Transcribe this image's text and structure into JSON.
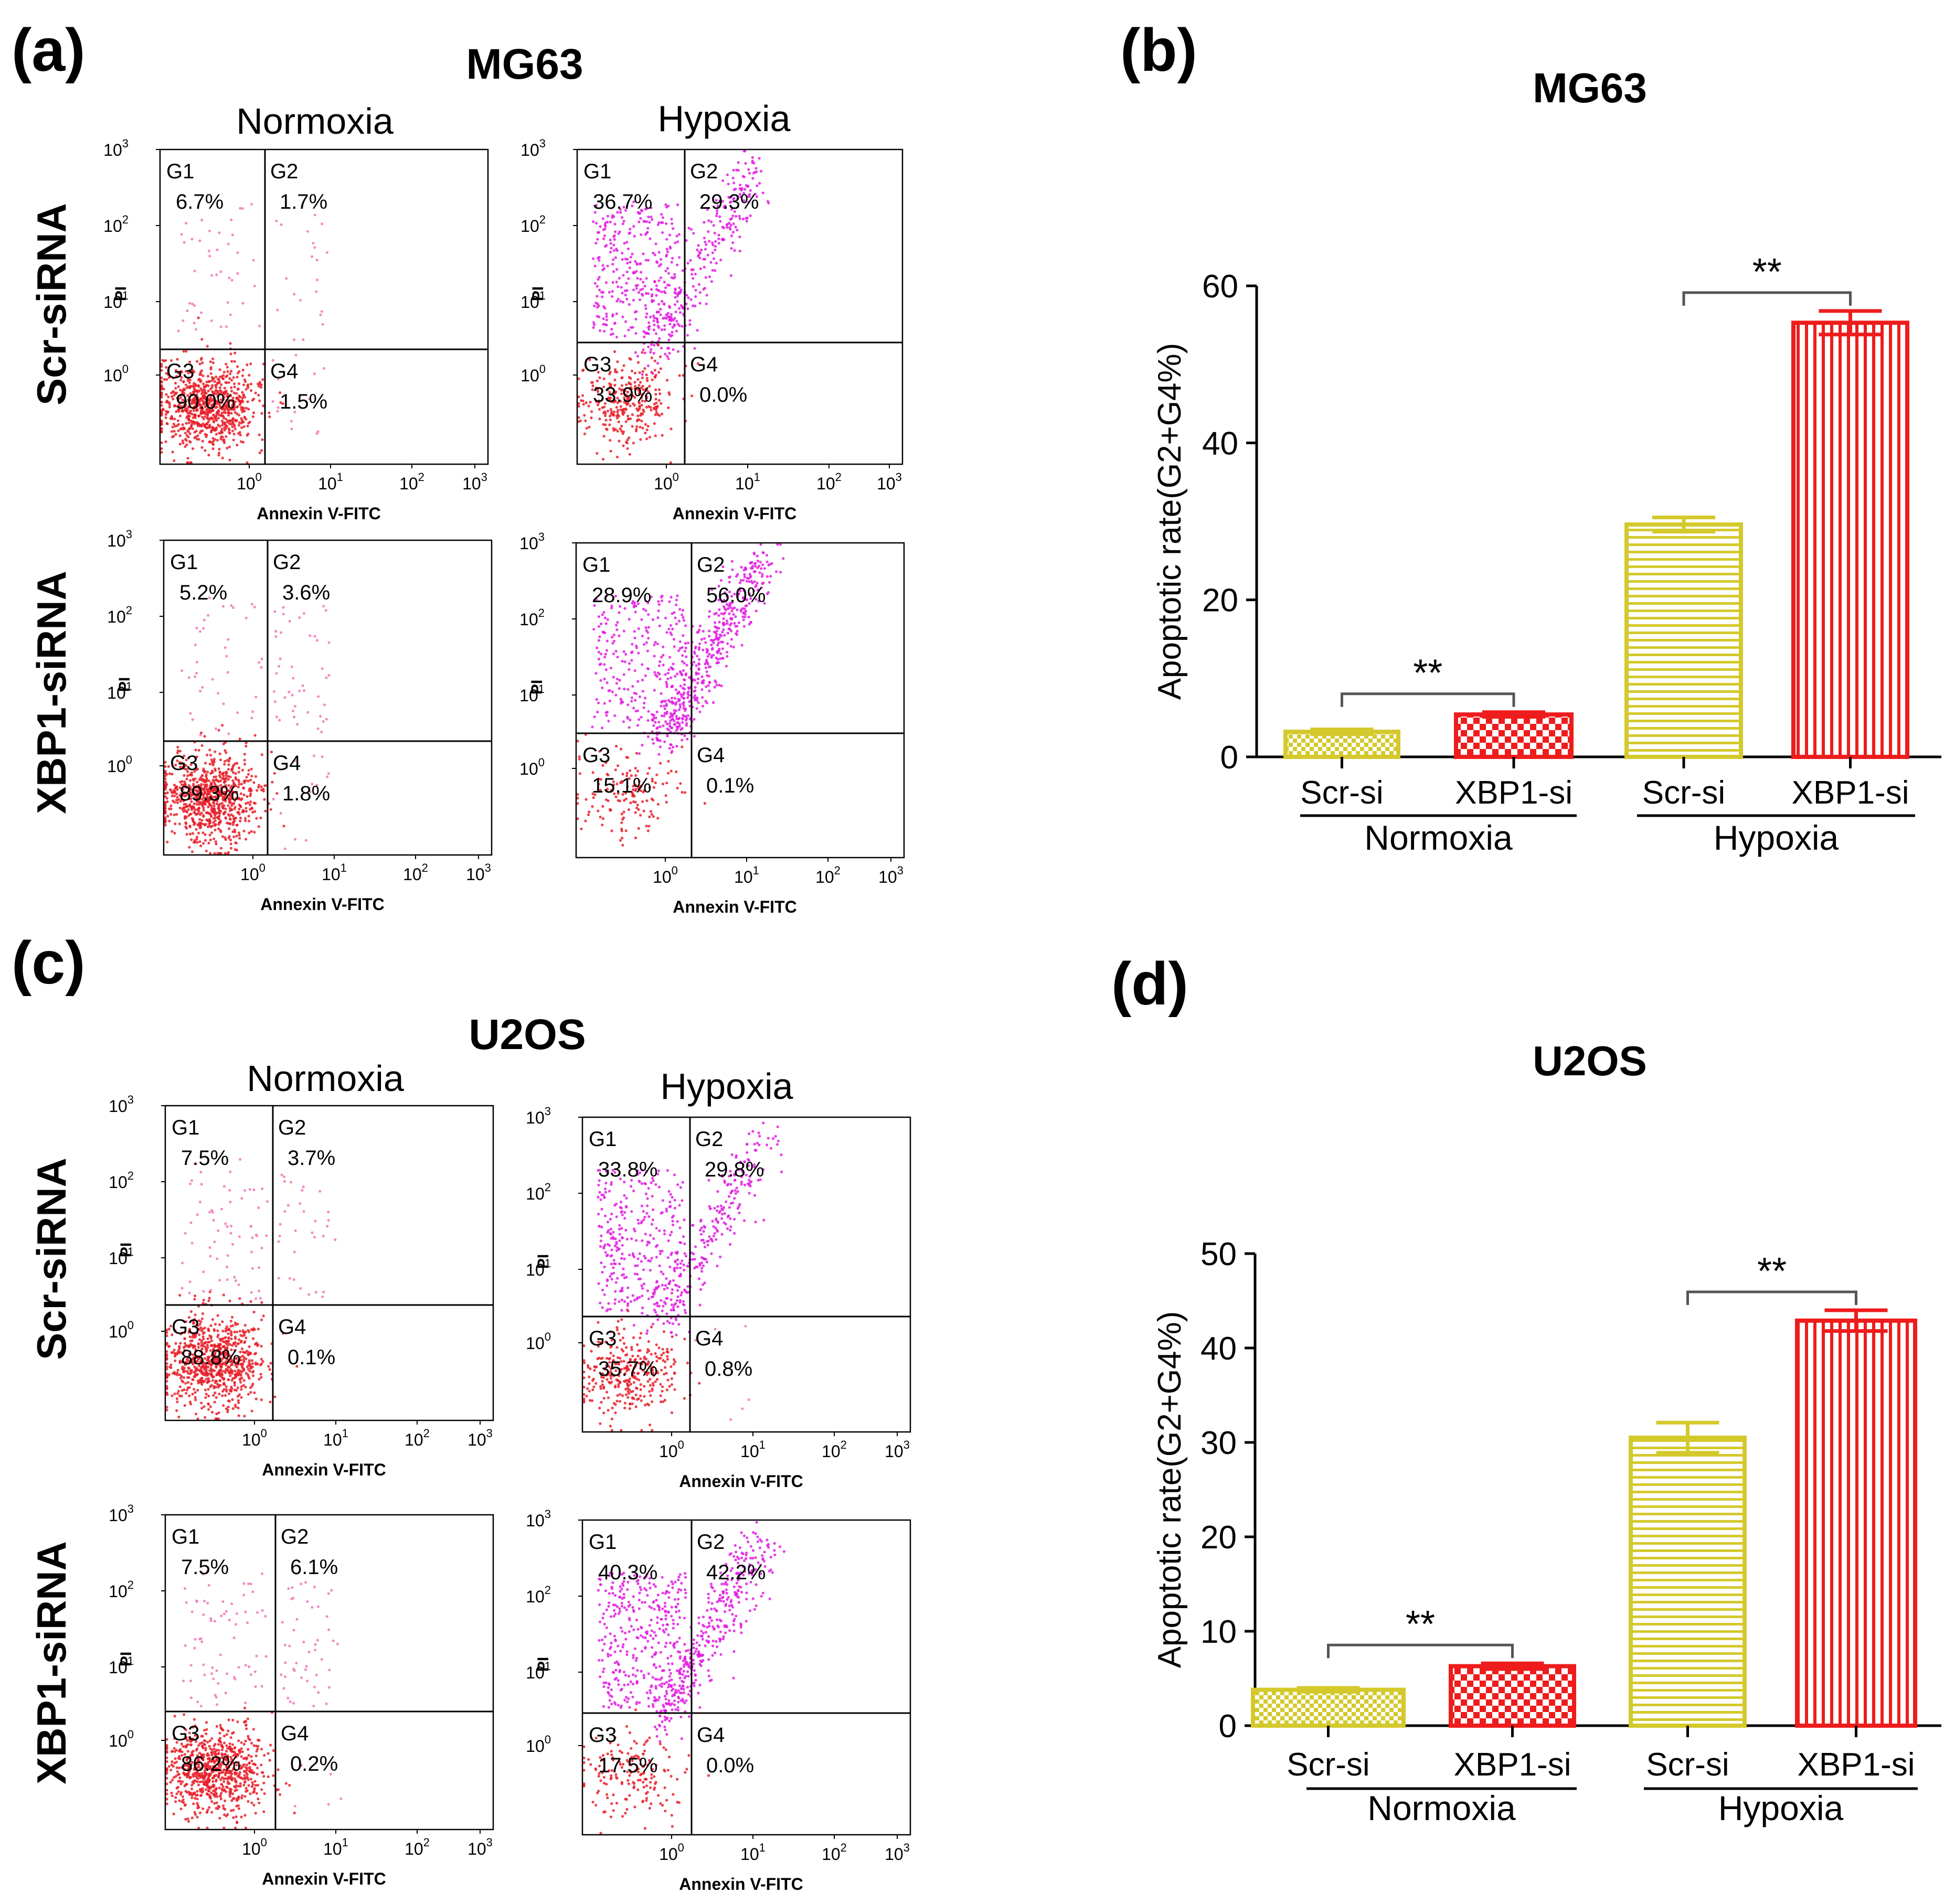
{
  "colors": {
    "axis": "#000000",
    "dot_red": "#e8202a",
    "dot_magenta": "#e21ce2",
    "dot_pink": "#f07ab8",
    "bar_yellow": "#d4c92c",
    "bar_red": "#ee1c1c",
    "bracket": "#555555"
  },
  "panel_labels": {
    "a": "(a)",
    "b": "(b)",
    "c": "(c)",
    "d": "(d)"
  },
  "flow": {
    "cell_lines": [
      "MG63",
      "U2OS"
    ],
    "conditions": [
      "Normoxia",
      "Hypoxia"
    ],
    "treatments": [
      "Scr-siRNA",
      "XBP1-siRNA"
    ],
    "x_axis_label": "Annexin V-FITC",
    "y_axis_label": "PI",
    "tick_base": "10",
    "tick_exponents": [
      "0",
      "1",
      "2",
      "3"
    ],
    "gate_names": [
      "G1",
      "G2",
      "G3",
      "G4"
    ]
  },
  "chart_data": [
    {
      "type": "scatter",
      "title": "MG63 Normoxia Scr-siRNA",
      "xlabel": "Annexin V-FITC",
      "ylabel": "PI",
      "gates": {
        "G1": "6.7%",
        "G2": "1.7%",
        "G3": "90.0%",
        "G4": "1.5%"
      }
    },
    {
      "type": "scatter",
      "title": "MG63 Hypoxia Scr-siRNA",
      "xlabel": "Annexin V-FITC",
      "ylabel": "PI",
      "gates": {
        "G1": "36.7%",
        "G2": "29.3%",
        "G3": "33.9%",
        "G4": "0.0%"
      }
    },
    {
      "type": "scatter",
      "title": "MG63 Normoxia XBP1-siRNA",
      "xlabel": "Annexin V-FITC",
      "ylabel": "PI",
      "gates": {
        "G1": "5.2%",
        "G2": "3.6%",
        "G3": "89.3%",
        "G4": "1.8%"
      }
    },
    {
      "type": "scatter",
      "title": "MG63 Hypoxia XBP1-siRNA",
      "xlabel": "Annexin V-FITC",
      "ylabel": "PI",
      "gates": {
        "G1": "28.9%",
        "G2": "56.0%",
        "G3": "15.1%",
        "G4": "0.1%"
      }
    },
    {
      "type": "scatter",
      "title": "U2OS Normoxia Scr-siRNA",
      "xlabel": "Annexin V-FITC",
      "ylabel": "PI",
      "gates": {
        "G1": "7.5%",
        "G2": "3.7%",
        "G3": "88.8%",
        "G4": "0.1%"
      }
    },
    {
      "type": "scatter",
      "title": "U2OS Hypoxia Scr-siRNA",
      "xlabel": "Annexin V-FITC",
      "ylabel": "PI",
      "gates": {
        "G1": "33.8%",
        "G2": "29.8%",
        "G3": "35.7%",
        "G4": "0.8%"
      }
    },
    {
      "type": "scatter",
      "title": "U2OS Normoxia XBP1-siRNA",
      "xlabel": "Annexin V-FITC",
      "ylabel": "PI",
      "gates": {
        "G1": "7.5%",
        "G2": "6.1%",
        "G3": "86.2%",
        "G4": "0.2%"
      }
    },
    {
      "type": "scatter",
      "title": "U2OS Hypoxia XBP1-siRNA",
      "xlabel": "Annexin V-FITC",
      "ylabel": "PI",
      "gates": {
        "G1": "40.3%",
        "G2": "42.2%",
        "G3": "17.5%",
        "G4": "0.0%"
      }
    },
    {
      "type": "bar",
      "title": "MG63",
      "ylabel": "Apoptotic rate(G2+G4%)",
      "ylim": [
        0,
        60
      ],
      "yticks": [
        0,
        20,
        40,
        60
      ],
      "categories": [
        "Scr-si",
        "XBP1-si",
        "Scr-si",
        "XBP1-si"
      ],
      "groups": [
        "Normoxia",
        "Hypoxia"
      ],
      "values": [
        3.2,
        5.4,
        29.6,
        55.3
      ],
      "errors": [
        0.3,
        0.3,
        0.9,
        1.5
      ],
      "significance": [
        "**",
        "**"
      ]
    },
    {
      "type": "bar",
      "title": "U2OS",
      "ylabel": "Apoptotic rate(G2+G4%)",
      "ylim": [
        0,
        50
      ],
      "yticks": [
        0,
        10,
        20,
        30,
        40,
        50
      ],
      "categories": [
        "Scr-si",
        "XBP1-si",
        "Scr-si",
        "XBP1-si"
      ],
      "groups": [
        "Normoxia",
        "Hypoxia"
      ],
      "values": [
        3.8,
        6.3,
        30.5,
        42.9
      ],
      "errors": [
        0.2,
        0.3,
        1.6,
        1.1
      ],
      "significance": [
        "**",
        "**"
      ]
    }
  ]
}
